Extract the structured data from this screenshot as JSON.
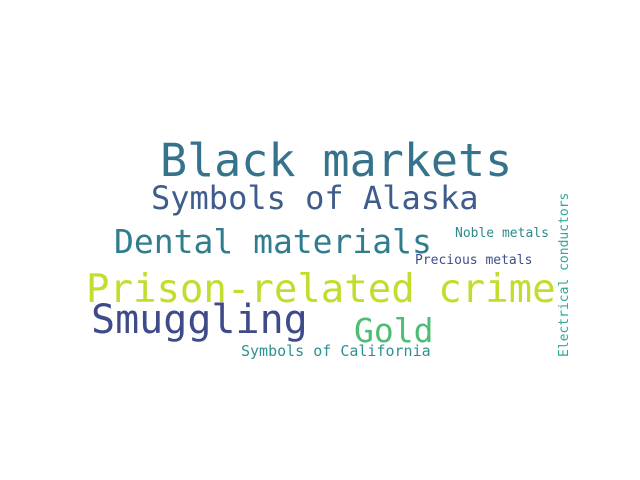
{
  "word_cloud": {
    "words": [
      {
        "text": "Black markets",
        "color": "#35738c"
      },
      {
        "text": "Symbols of Alaska",
        "color": "#3f5d8c"
      },
      {
        "text": "Dental materials",
        "color": "#2f7d8e"
      },
      {
        "text": "Noble metals",
        "color": "#2e8a8a"
      },
      {
        "text": "Precious metals",
        "color": "#3d4f8a"
      },
      {
        "text": "Electrical conductors",
        "color": "#2ea89a"
      },
      {
        "text": "Prison-related crime",
        "color": "#c4dc2d"
      },
      {
        "text": "Smuggling",
        "color": "#3f4a8a"
      },
      {
        "text": "Gold",
        "color": "#4ebd73"
      },
      {
        "text": "Symbols of California",
        "color": "#2e9191"
      }
    ]
  }
}
